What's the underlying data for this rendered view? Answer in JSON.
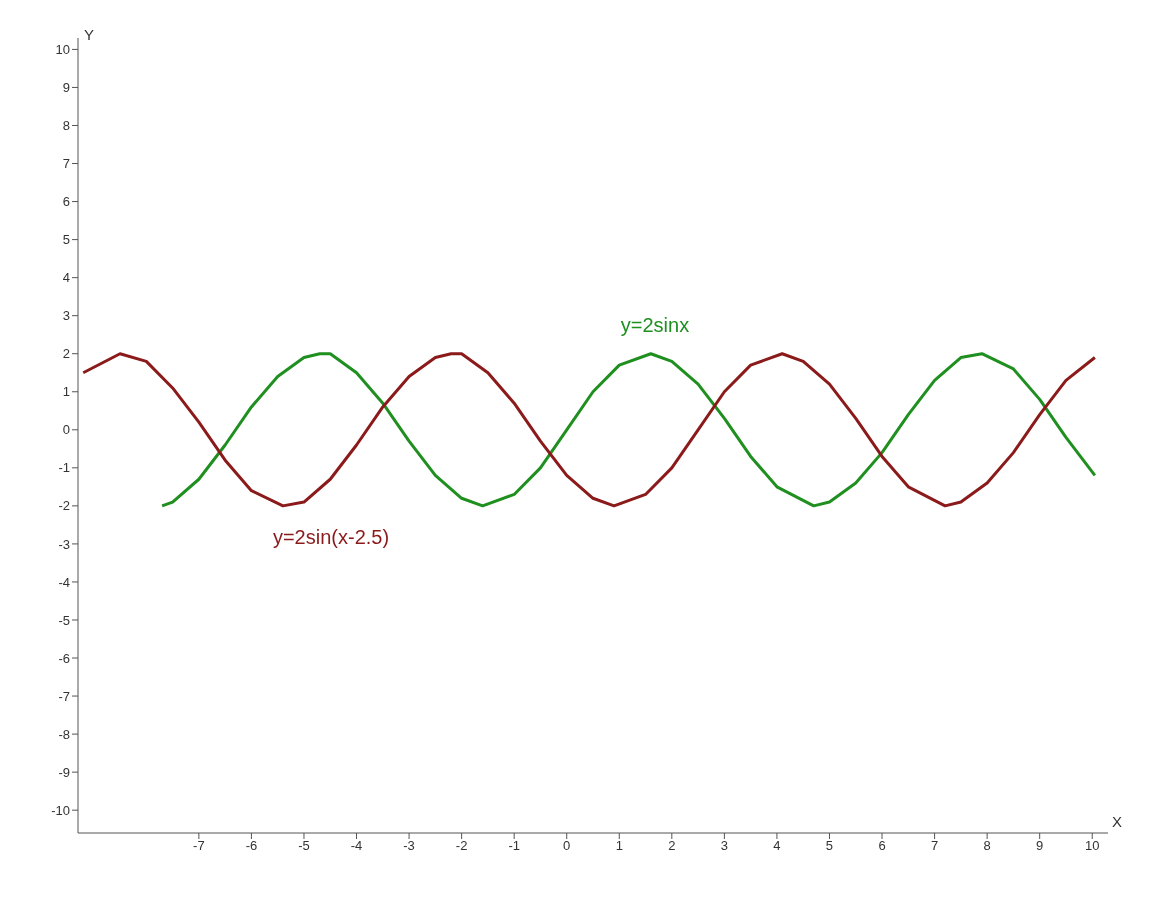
{
  "chart_data": {
    "type": "line",
    "xlabel": "X",
    "ylabel": "Y",
    "xlim": [
      -9.3,
      10.3
    ],
    "ylim": [
      -10.6,
      10.3
    ],
    "xticks": [
      -7,
      -6,
      -5,
      -4,
      -3,
      -2,
      -1,
      0,
      1,
      2,
      3,
      4,
      5,
      6,
      7,
      8,
      9,
      10
    ],
    "yticks": [
      -10,
      -9,
      -8,
      -7,
      -6,
      -5,
      -4,
      -3,
      -2,
      -1,
      0,
      1,
      2,
      3,
      4,
      5,
      6,
      7,
      8,
      9,
      10
    ],
    "grid": false,
    "legend": false,
    "marker": "none",
    "line_style": "solid",
    "series": [
      {
        "name": "y=2sinx",
        "color": "#1f8f1f",
        "x": [
          -7.7,
          -7.5,
          -7,
          -6.5,
          -6,
          -5.5,
          -5,
          -4.7,
          -4.5,
          -4,
          -3.5,
          -3,
          -2.5,
          -2,
          -1.6,
          -1,
          -0.5,
          0,
          0.5,
          1,
          1.6,
          2,
          2.5,
          3,
          3.5,
          4,
          4.7,
          5,
          5.5,
          6,
          6.5,
          7,
          7.5,
          7.9,
          8.5,
          9,
          9.5,
          10.05
        ],
        "values": [
          -2.0,
          -1.9,
          -1.3,
          -0.4,
          0.6,
          1.4,
          1.9,
          2.0,
          2.0,
          1.5,
          0.7,
          -0.3,
          -1.2,
          -1.8,
          -2.0,
          -1.7,
          -1.0,
          0,
          1.0,
          1.7,
          2.0,
          1.8,
          1.2,
          0.3,
          -0.7,
          -1.5,
          -2.0,
          -1.9,
          -1.4,
          -0.6,
          0.4,
          1.3,
          1.9,
          2.0,
          1.6,
          0.8,
          -0.2,
          -1.2
        ]
      },
      {
        "name": "y=2sin(x-2.5)",
        "color": "#8b1a1a",
        "x": [
          -9.2,
          -8.5,
          -8,
          -7.5,
          -7,
          -6.5,
          -6,
          -5.4,
          -5,
          -4.5,
          -4,
          -3.5,
          -3,
          -2.5,
          -2.2,
          -2,
          -1.5,
          -1,
          -0.5,
          0,
          0.5,
          0.9,
          1.5,
          2,
          2.5,
          3,
          3.5,
          4.1,
          4.5,
          5,
          5.5,
          6,
          6.5,
          7.2,
          7.5,
          8,
          8.5,
          9,
          9.5,
          10.05
        ],
        "values": [
          1.5,
          2.0,
          1.8,
          1.1,
          0.2,
          -0.8,
          -1.6,
          -2.0,
          -1.9,
          -1.3,
          -0.4,
          0.6,
          1.4,
          1.9,
          2.0,
          2.0,
          1.5,
          0.7,
          -0.3,
          -1.2,
          -1.8,
          -2.0,
          -1.7,
          -1.0,
          0,
          1.0,
          1.7,
          2.0,
          1.8,
          1.2,
          0.3,
          -0.7,
          -1.5,
          -2.0,
          -1.9,
          -1.4,
          -0.6,
          0.4,
          1.3,
          1.9
        ]
      }
    ]
  }
}
